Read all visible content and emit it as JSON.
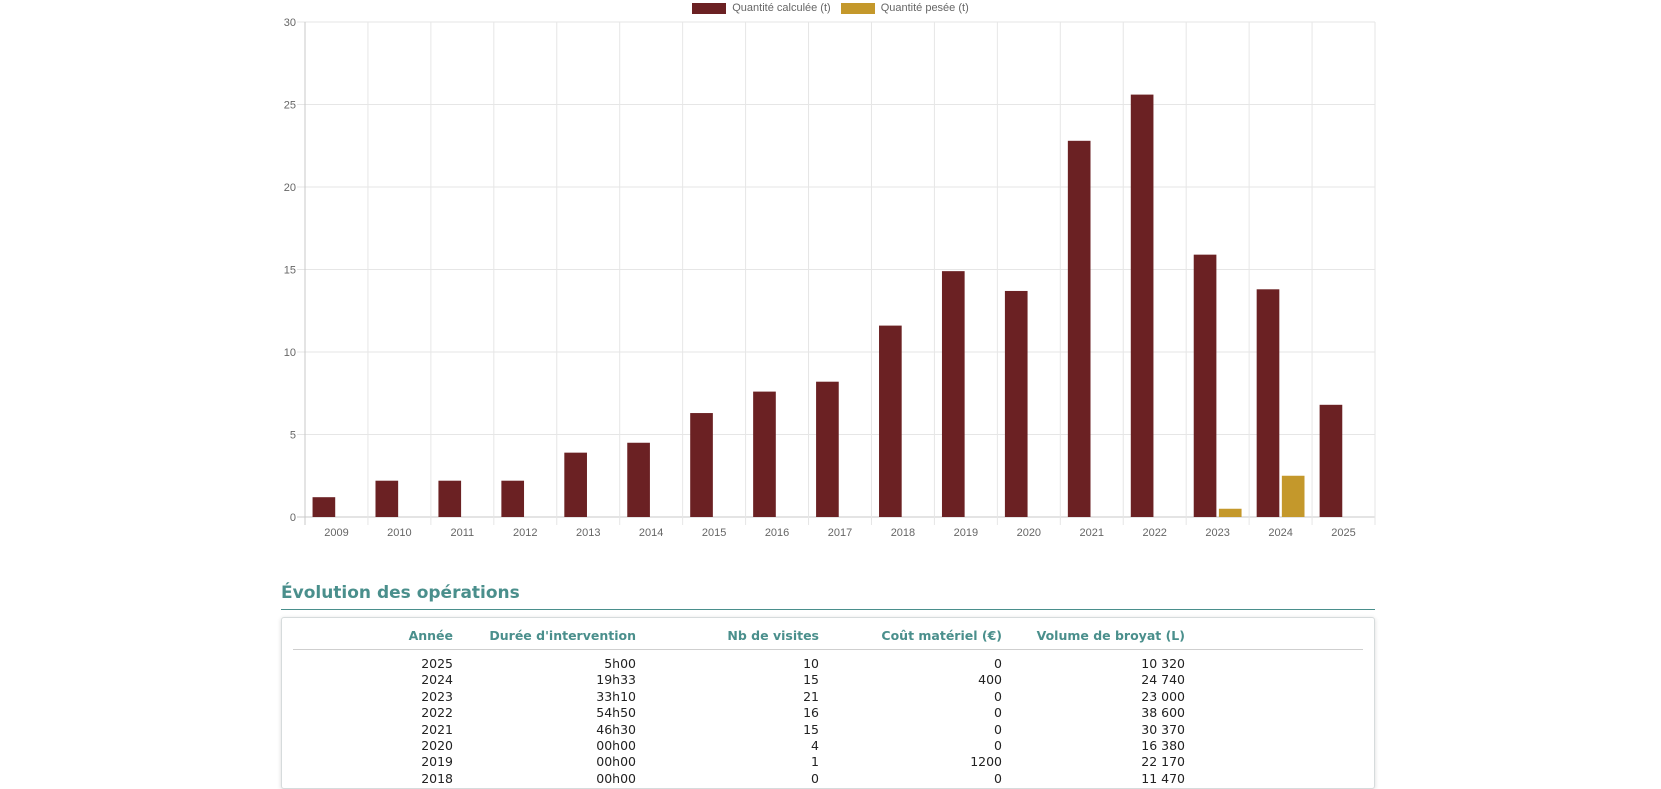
{
  "chart_data": {
    "type": "bar",
    "title": "",
    "xlabel": "",
    "ylabel": "",
    "ylim": [
      0,
      30
    ],
    "yticks": [
      0,
      5,
      10,
      15,
      20,
      25,
      30
    ],
    "categories": [
      "2009",
      "2010",
      "2011",
      "2012",
      "2013",
      "2014",
      "2015",
      "2016",
      "2017",
      "2018",
      "2019",
      "2020",
      "2021",
      "2022",
      "2023",
      "2024",
      "2025"
    ],
    "series": [
      {
        "name": "Quantité calculée (t)",
        "color": "#6b2123",
        "values": [
          1.2,
          2.2,
          2.2,
          2.2,
          3.9,
          4.5,
          6.3,
          7.6,
          8.2,
          11.6,
          14.9,
          13.7,
          22.8,
          25.6,
          15.9,
          13.8,
          6.8
        ]
      },
      {
        "name": "Quantité pesée (t)",
        "color": "#c4982b",
        "values": [
          null,
          null,
          null,
          null,
          null,
          null,
          null,
          null,
          null,
          null,
          null,
          null,
          null,
          null,
          0.5,
          2.5,
          null
        ]
      }
    ],
    "grid": true,
    "legend": "top-center"
  },
  "section": {
    "title": "Évolution des opérations"
  },
  "table": {
    "headers": [
      "Année",
      "Durée d'intervention",
      "Nb de visites",
      "Coût matériel (€)",
      "Volume de broyat (L)"
    ],
    "rows": [
      [
        "2025",
        "5h00",
        "10",
        "0",
        "10 320"
      ],
      [
        "2024",
        "19h33",
        "15",
        "400",
        "24 740"
      ],
      [
        "2023",
        "33h10",
        "21",
        "0",
        "23 000"
      ],
      [
        "2022",
        "54h50",
        "16",
        "0",
        "38 600"
      ],
      [
        "2021",
        "46h30",
        "15",
        "0",
        "30 370"
      ],
      [
        "2020",
        "00h00",
        "4",
        "0",
        "16 380"
      ],
      [
        "2019",
        "00h00",
        "1",
        "1200",
        "22 170"
      ],
      [
        "2018",
        "00h00",
        "0",
        "0",
        "11 470"
      ]
    ]
  }
}
